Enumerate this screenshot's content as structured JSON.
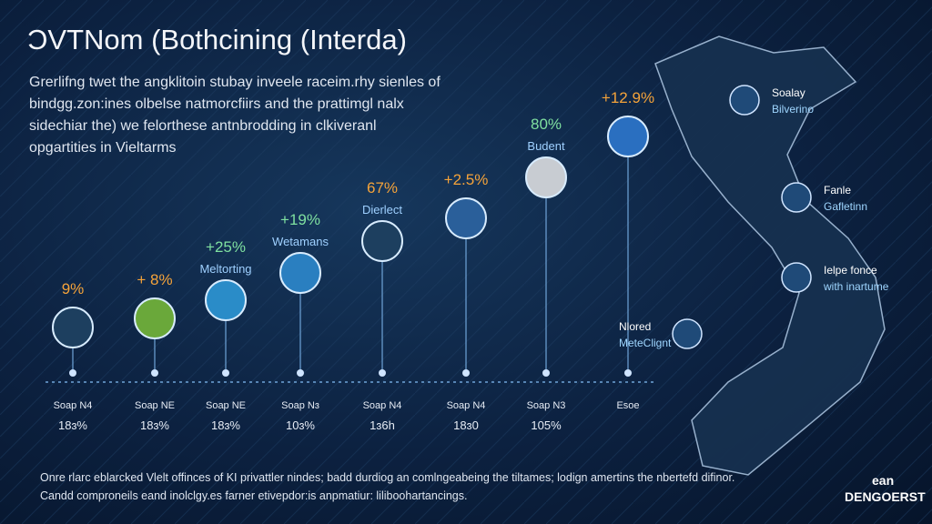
{
  "title": "ƆVTNom (Bothcining (Interda)",
  "intro": [
    "Grerlifng twet the angklitoin stubay inveele raceim.rhy sienles of",
    "bindgg.zon:ines olbelse natmorcfiirs and the prattimgl nalx",
    "sidechiar the) we felorthese antnbrodding in clkiveranl",
    "opgartities in Vieltarms"
  ],
  "milestones": [
    {
      "value": "9%",
      "bottom": [
        "Soap N4",
        "18ɜ%"
      ]
    },
    {
      "value": "+ 8%",
      "bottom": [
        "Soap NE",
        "18ɜ%"
      ]
    },
    {
      "value": "+25%",
      "label": "Meltorting",
      "bottom": [
        "Soap NE",
        "18ɜ%"
      ]
    },
    {
      "value": "+19%",
      "label": "Wetamans",
      "bottom": [
        "Soap Nɜ",
        "10ɜ%"
      ]
    },
    {
      "value": "67%",
      "label": "Dierlect",
      "bottom": [
        "Soap N4",
        "1ɜ6h"
      ]
    },
    {
      "value": "+2.5%",
      "bottom": [
        "Soap N4",
        "18ɜ0"
      ]
    },
    {
      "value": "80%",
      "label": "Budent",
      "bottom": [
        "Soap N3",
        "105%"
      ]
    },
    {
      "value": "+12.9%",
      "bottom": [
        "Esoe"
      ]
    }
  ],
  "map_labels": [
    [
      "Soalay",
      "Bilverino"
    ],
    [
      "Fanle",
      "Gafletinn"
    ],
    [
      "Ielpe fonce",
      "with inartume"
    ],
    [
      "Nlored",
      "MeteClignt"
    ]
  ],
  "footer": [
    "Onre rlarc eblarcked Vlelt offinces of KI privattler nindes; badd durdiog an comlngeabeing the tiltames; lodign amertins the nbertefd difinor.",
    "Candd comproneils eand inolclgy.es farner etivepdor:is anpmatiur: liliboohartancings."
  ],
  "logo": [
    "ean",
    "DENGOERST"
  ]
}
